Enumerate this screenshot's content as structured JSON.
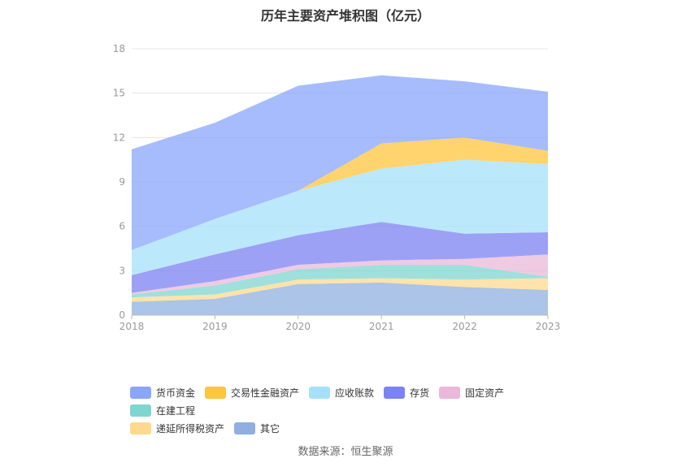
{
  "chart_data": {
    "type": "area",
    "stacked": true,
    "title": "历年主要资产堆积图（亿元）",
    "categories": [
      "2018",
      "2019",
      "2020",
      "2021",
      "2022",
      "2023"
    ],
    "ylim": [
      0,
      18
    ],
    "yticks": [
      "0",
      "3",
      "6",
      "9",
      "12",
      "15",
      "18"
    ],
    "grid": true,
    "legend_position": "bottom",
    "series": [
      {
        "name": "其它",
        "color": "#8fb0df",
        "values": [
          0.9,
          1.1,
          2.1,
          2.2,
          1.9,
          1.7
        ]
      },
      {
        "name": "递延所得税资产",
        "color": "#ffd98e",
        "values": [
          0.3,
          0.3,
          0.3,
          0.3,
          0.5,
          0.8
        ]
      },
      {
        "name": "在建工程",
        "color": "#7fd5d0",
        "values": [
          0.2,
          0.6,
          0.7,
          0.9,
          1.0,
          0.1
        ]
      },
      {
        "name": "固定资产",
        "color": "#e9b8da",
        "values": [
          0.1,
          0.3,
          0.3,
          0.3,
          0.4,
          1.5
        ]
      },
      {
        "name": "存货",
        "color": "#7b82f1",
        "values": [
          1.2,
          1.8,
          2.0,
          2.6,
          1.7,
          1.5
        ]
      },
      {
        "name": "应收账款",
        "color": "#a6e0fb",
        "values": [
          1.7,
          2.4,
          3.0,
          3.6,
          5.0,
          4.6
        ]
      },
      {
        "name": "交易性金融资产",
        "color": "#ffc53d",
        "values": [
          0.0,
          0.0,
          0.0,
          1.7,
          1.5,
          0.9
        ]
      },
      {
        "name": "货币资金",
        "color": "#89a6fb",
        "values": [
          6.8,
          6.5,
          7.1,
          4.6,
          3.8,
          4.0
        ]
      }
    ]
  },
  "legend": {
    "row1": [
      {
        "label": "货币资金",
        "color": "#89a6fb"
      },
      {
        "label": "交易性金融资产",
        "color": "#ffc53d"
      },
      {
        "label": "应收账款",
        "color": "#a6e0fb"
      },
      {
        "label": "存货",
        "color": "#7b82f1"
      },
      {
        "label": "固定资产",
        "color": "#e9b8da"
      },
      {
        "label": "在建工程",
        "color": "#7fd5d0"
      }
    ],
    "row2": [
      {
        "label": "递延所得税资产",
        "color": "#ffd98e"
      },
      {
        "label": "其它",
        "color": "#8fb0df"
      }
    ]
  },
  "source_note": "数据来源：恒生聚源"
}
